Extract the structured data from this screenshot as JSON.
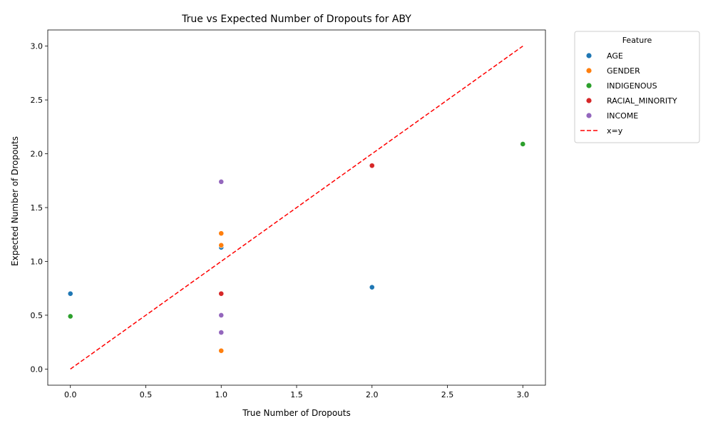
{
  "chart_data": {
    "type": "scatter",
    "title": "True vs Expected Number of Dropouts for ABY",
    "xlabel": "True Number of Dropouts",
    "ylabel": "Expected Number of Dropouts",
    "xlim": [
      -0.15,
      3.15
    ],
    "ylim": [
      -0.15,
      3.15
    ],
    "xticks": [
      "0.0",
      "0.5",
      "1.0",
      "1.5",
      "2.0",
      "2.5",
      "3.0"
    ],
    "yticks": [
      "0.0",
      "0.5",
      "1.0",
      "1.5",
      "2.0",
      "2.5",
      "3.0"
    ],
    "grid": false,
    "legend": {
      "title": "Feature",
      "placement": "outside-top-right"
    },
    "series": [
      {
        "name": "AGE",
        "color": "#1f77b4",
        "points": [
          [
            0,
            0.7
          ],
          [
            1,
            1.13
          ],
          [
            2,
            0.76
          ]
        ]
      },
      {
        "name": "GENDER",
        "color": "#ff7f0e",
        "points": [
          [
            1,
            1.26
          ],
          [
            1,
            1.15
          ],
          [
            1,
            0.17
          ]
        ]
      },
      {
        "name": "INDIGENOUS",
        "color": "#2ca02c",
        "points": [
          [
            0,
            0.49
          ],
          [
            3,
            2.09
          ]
        ]
      },
      {
        "name": "RACIAL_MINORITY",
        "color": "#d62728",
        "points": [
          [
            1,
            0.7
          ],
          [
            2,
            1.89
          ]
        ]
      },
      {
        "name": "INCOME",
        "color": "#9467bd",
        "points": [
          [
            1,
            1.74
          ],
          [
            1,
            0.5
          ],
          [
            1,
            0.34
          ]
        ]
      }
    ],
    "reference_line": {
      "name": "x=y",
      "color": "#ff0000",
      "style": "dashed",
      "from": [
        0,
        0
      ],
      "to": [
        3,
        3
      ]
    }
  }
}
